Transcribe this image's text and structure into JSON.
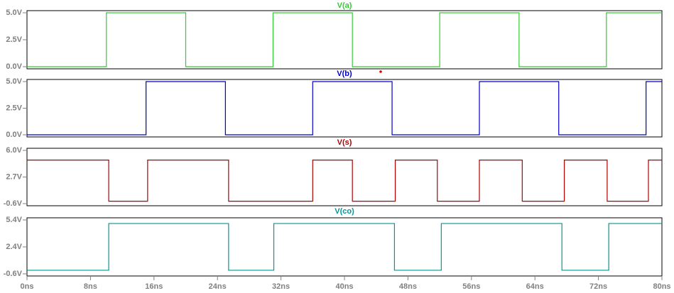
{
  "chart_data": [
    {
      "type": "line",
      "xlim": [
        0,
        80
      ],
      "ylim": [
        0,
        5
      ],
      "yticks": [
        {
          "value": 0,
          "label": "0.0V"
        },
        {
          "value": 2.5,
          "label": "2.5V"
        },
        {
          "value": 5,
          "label": "5.0V"
        }
      ],
      "x": [
        0,
        10,
        10,
        20,
        20,
        31,
        31,
        41,
        41,
        52,
        52,
        62,
        62,
        73,
        73,
        80
      ],
      "series": [
        {
          "name": "V(a)",
          "color": "#33cc33",
          "values": [
            0,
            0,
            5,
            5,
            0,
            0,
            5,
            5,
            0,
            0,
            5,
            5,
            0,
            0,
            5,
            5
          ]
        }
      ]
    },
    {
      "type": "line",
      "xlim": [
        0,
        80
      ],
      "ylim": [
        0,
        5
      ],
      "yticks": [
        {
          "value": 0,
          "label": "0.0V"
        },
        {
          "value": 2.5,
          "label": "2.5V"
        },
        {
          "value": 5,
          "label": "5.0V"
        }
      ],
      "x": [
        0,
        15,
        15,
        25,
        25,
        36,
        36,
        46,
        46,
        57,
        57,
        67,
        67,
        78,
        78,
        80
      ],
      "series": [
        {
          "name": "V(b)",
          "color": "#0000cc",
          "values": [
            0,
            0,
            5,
            5,
            0,
            0,
            5,
            5,
            0,
            0,
            5,
            5,
            0,
            0,
            5,
            5
          ]
        }
      ]
    },
    {
      "type": "line",
      "xlim": [
        0,
        80
      ],
      "ylim": [
        -0.6,
        6
      ],
      "yticks": [
        {
          "value": -0.6,
          "label": "-0.6V"
        },
        {
          "value": 2.7,
          "label": "2.7V"
        },
        {
          "value": 6,
          "label": "6.0V"
        }
      ],
      "x": [
        0,
        10.3,
        10.3,
        15.2,
        15.2,
        25.4,
        25.4,
        36,
        36,
        41,
        41,
        46.4,
        46.4,
        51.7,
        51.7,
        57,
        57,
        62.4,
        62.4,
        67.7,
        67.7,
        73.1,
        73.1,
        78.3,
        78.3,
        80
      ],
      "series": [
        {
          "name": "V(s)",
          "color": "#b00000",
          "values": [
            4.8,
            4.8,
            -0.3,
            -0.3,
            4.8,
            4.8,
            -0.3,
            -0.3,
            4.8,
            4.8,
            -0.3,
            -0.3,
            4.8,
            4.8,
            -0.3,
            -0.3,
            4.8,
            4.8,
            -0.3,
            -0.3,
            4.8,
            4.8,
            -0.3,
            -0.3,
            4.8,
            4.8
          ]
        }
      ]
    },
    {
      "type": "line",
      "xlim": [
        0,
        80
      ],
      "ylim": [
        -0.6,
        5.4
      ],
      "yticks": [
        {
          "value": -0.6,
          "label": "-0.6V"
        },
        {
          "value": 2.4,
          "label": "2.4V"
        },
        {
          "value": 5.4,
          "label": "5.4V"
        }
      ],
      "x": [
        0,
        10.3,
        10.3,
        25.4,
        25.4,
        31.1,
        31.1,
        46.3,
        46.3,
        52.2,
        52.2,
        67.4,
        67.4,
        73.3,
        73.3,
        80
      ],
      "series": [
        {
          "name": "V(co)",
          "color": "#009999",
          "values": [
            -0.2,
            -0.2,
            5,
            5,
            -0.2,
            -0.2,
            5,
            5,
            -0.2,
            -0.2,
            5,
            5,
            -0.2,
            -0.2,
            5,
            5
          ]
        }
      ],
      "xticks": [
        {
          "value": 0,
          "label": "0ns"
        },
        {
          "value": 8,
          "label": "8ns"
        },
        {
          "value": 16,
          "label": "16ns"
        },
        {
          "value": 24,
          "label": "24ns"
        },
        {
          "value": 32,
          "label": "32ns"
        },
        {
          "value": 40,
          "label": "40ns"
        },
        {
          "value": 48,
          "label": "48ns"
        },
        {
          "value": 56,
          "label": "56ns"
        },
        {
          "value": 64,
          "label": "64ns"
        },
        {
          "value": 72,
          "label": "72ns"
        },
        {
          "value": 80,
          "label": "80ns"
        }
      ]
    }
  ]
}
